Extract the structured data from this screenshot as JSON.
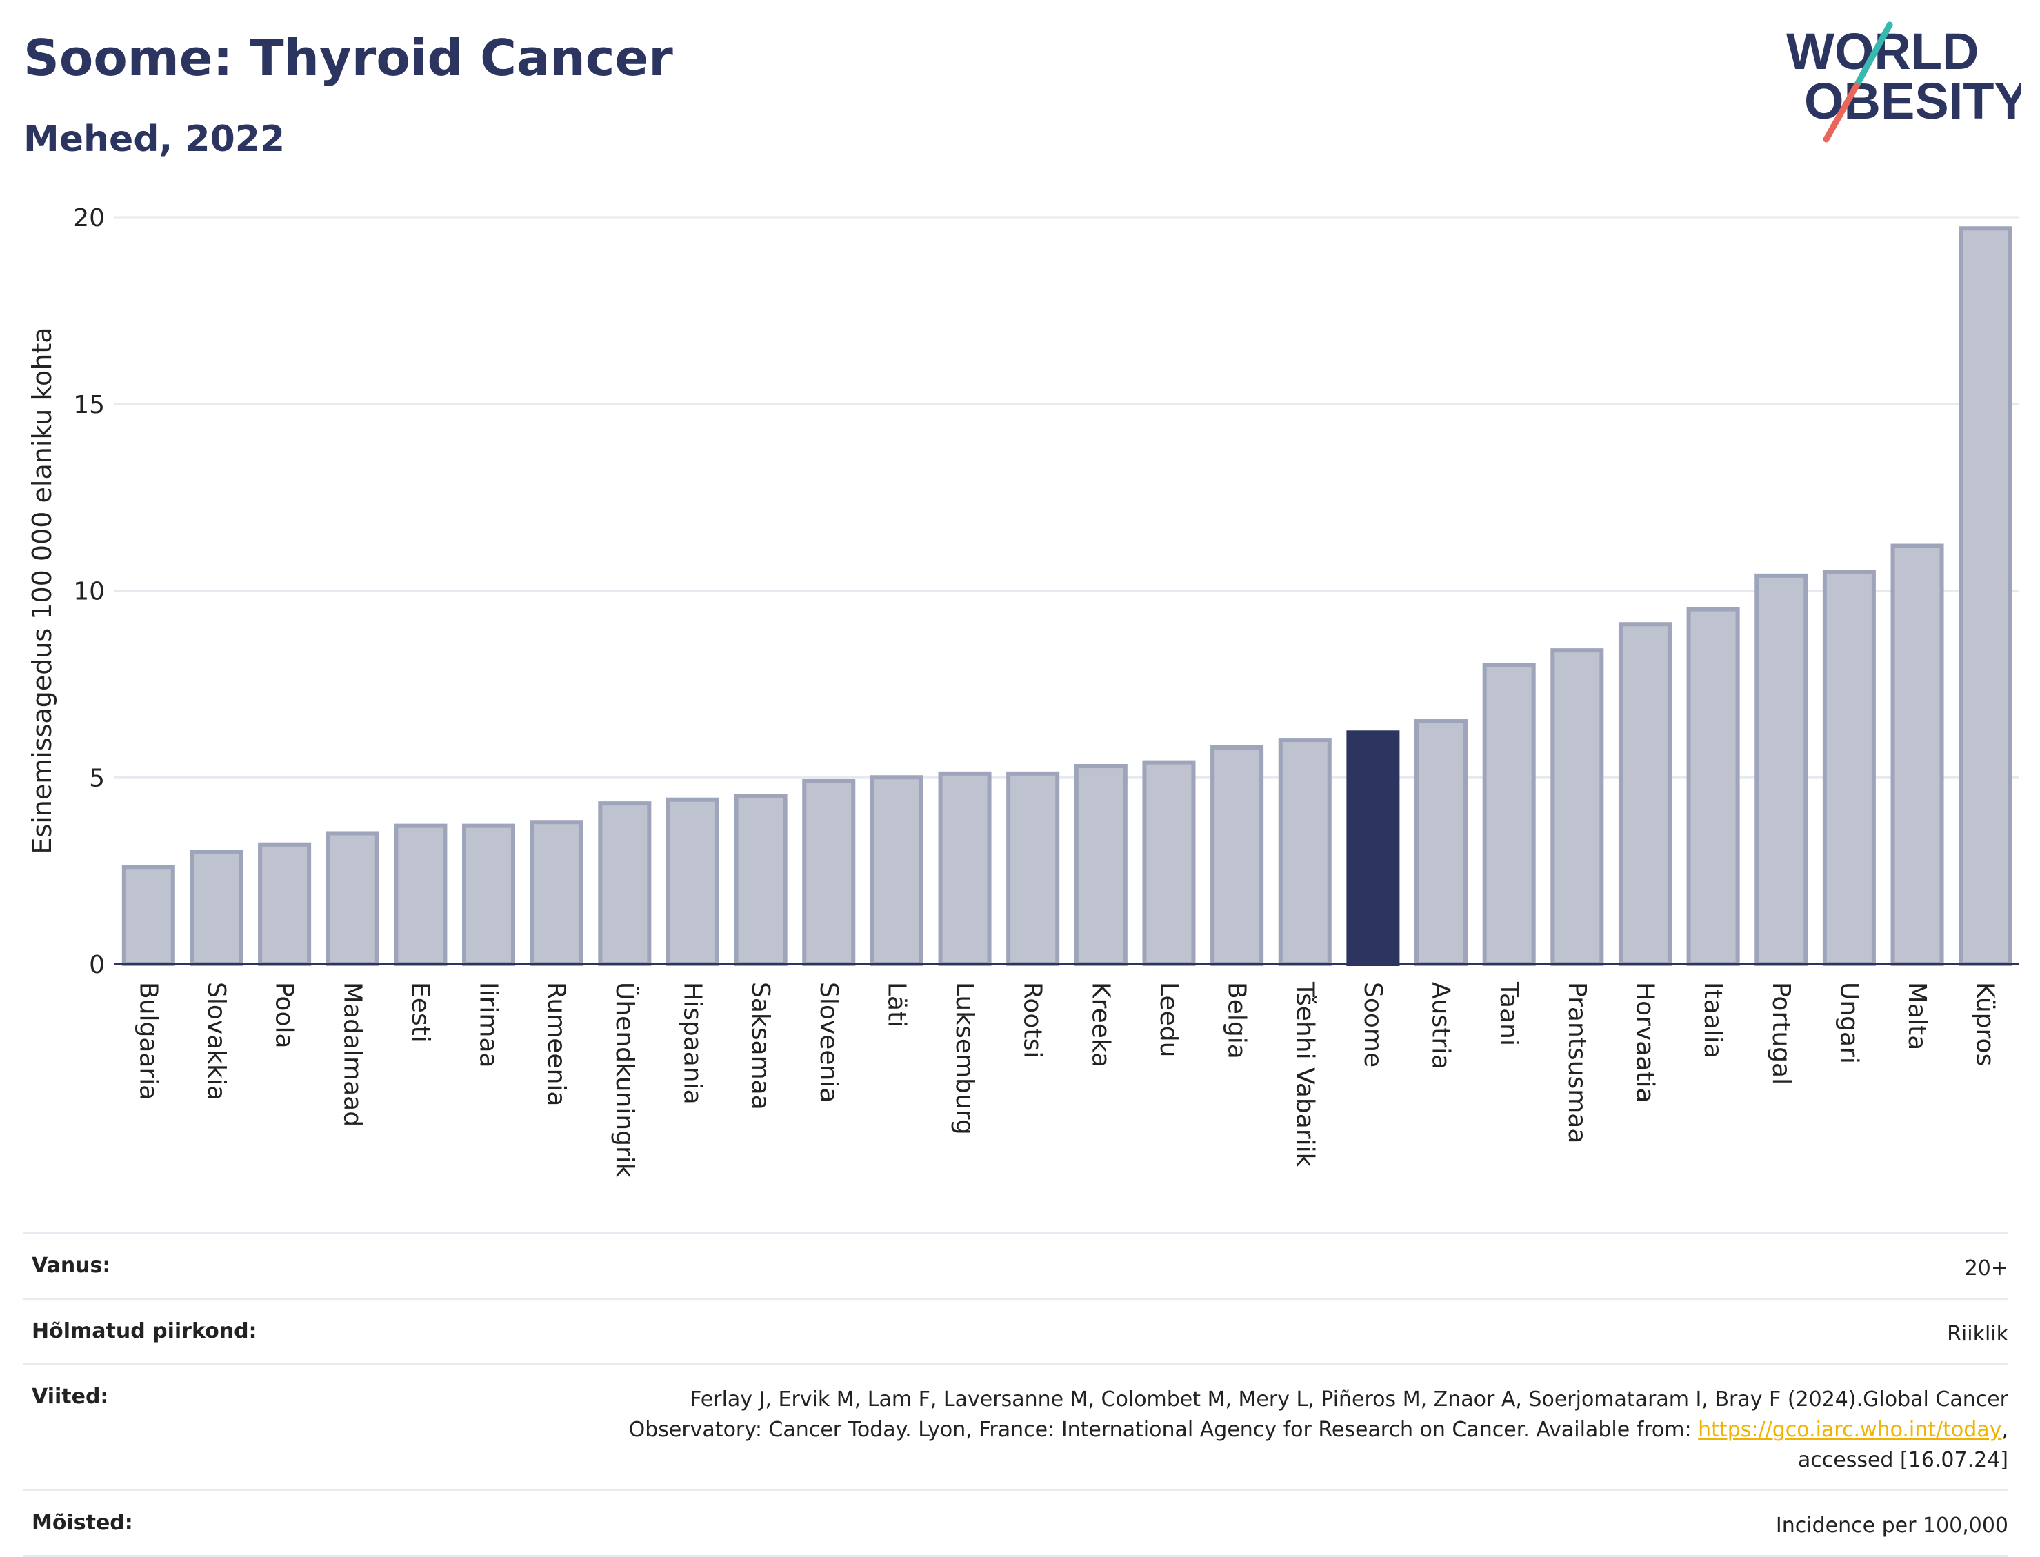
{
  "header": {
    "title": "Soome: Thyroid Cancer",
    "subtitle": "Mehed, 2022"
  },
  "logo": {
    "line1": "WORLD",
    "line2": "OBESITY"
  },
  "chart_data": {
    "type": "bar",
    "ylabel": "Esinemissagedus 100 000 elaniku kohta",
    "ylim": [
      0,
      20
    ],
    "yticks": [
      0,
      5,
      10,
      15,
      20
    ],
    "highlight": "Soome",
    "colors": {
      "bar": "#bfc2cf",
      "bar_border": "#9ea4ba",
      "highlight": "#2b3560"
    },
    "categories": [
      "Bulgaaria",
      "Slovakkia",
      "Poola",
      "Madalmaad",
      "Eesti",
      "Iirimaa",
      "Rumeenia",
      "Ühendkuningrik",
      "Hispaania",
      "Saksamaa",
      "Sloveenia",
      "Läti",
      "Luksemburg",
      "Rootsi",
      "Kreeka",
      "Leedu",
      "Belgia",
      "Tšehhi Vabariik",
      "Soome",
      "Austria",
      "Taani",
      "Prantsusmaa",
      "Horvaatia",
      "Itaalia",
      "Portugal",
      "Ungari",
      "Malta",
      "Küpros"
    ],
    "values": [
      2.6,
      3.0,
      3.2,
      3.5,
      3.7,
      3.7,
      3.8,
      4.3,
      4.4,
      4.5,
      4.9,
      5.0,
      5.1,
      5.1,
      5.3,
      5.4,
      5.8,
      6.0,
      6.2,
      6.5,
      8.0,
      8.4,
      9.1,
      9.5,
      10.4,
      10.5,
      11.2,
      19.7
    ]
  },
  "meta": {
    "age_label": "Vanus:",
    "age_value": "20+",
    "region_label": "Hõlmatud piirkond:",
    "region_value": "Riiklik",
    "refs_label": "Viited:",
    "refs_text1": "Ferlay J, Ervik M, Lam F, Laversanne M, Colombet M, Mery L, Piñeros M, Znaor A, Soerjomataram I, Bray F (2024).Global Cancer",
    "refs_text2": "Observatory: Cancer Today. Lyon, France: International Agency for Research on Cancer. Available from: ",
    "refs_link": "https://gco.iarc.who.int/today",
    "refs_text3": ",",
    "refs_text4": "accessed [16.07.24]",
    "defs_label": "Mõisted:",
    "defs_value": "Incidence per 100,000"
  }
}
